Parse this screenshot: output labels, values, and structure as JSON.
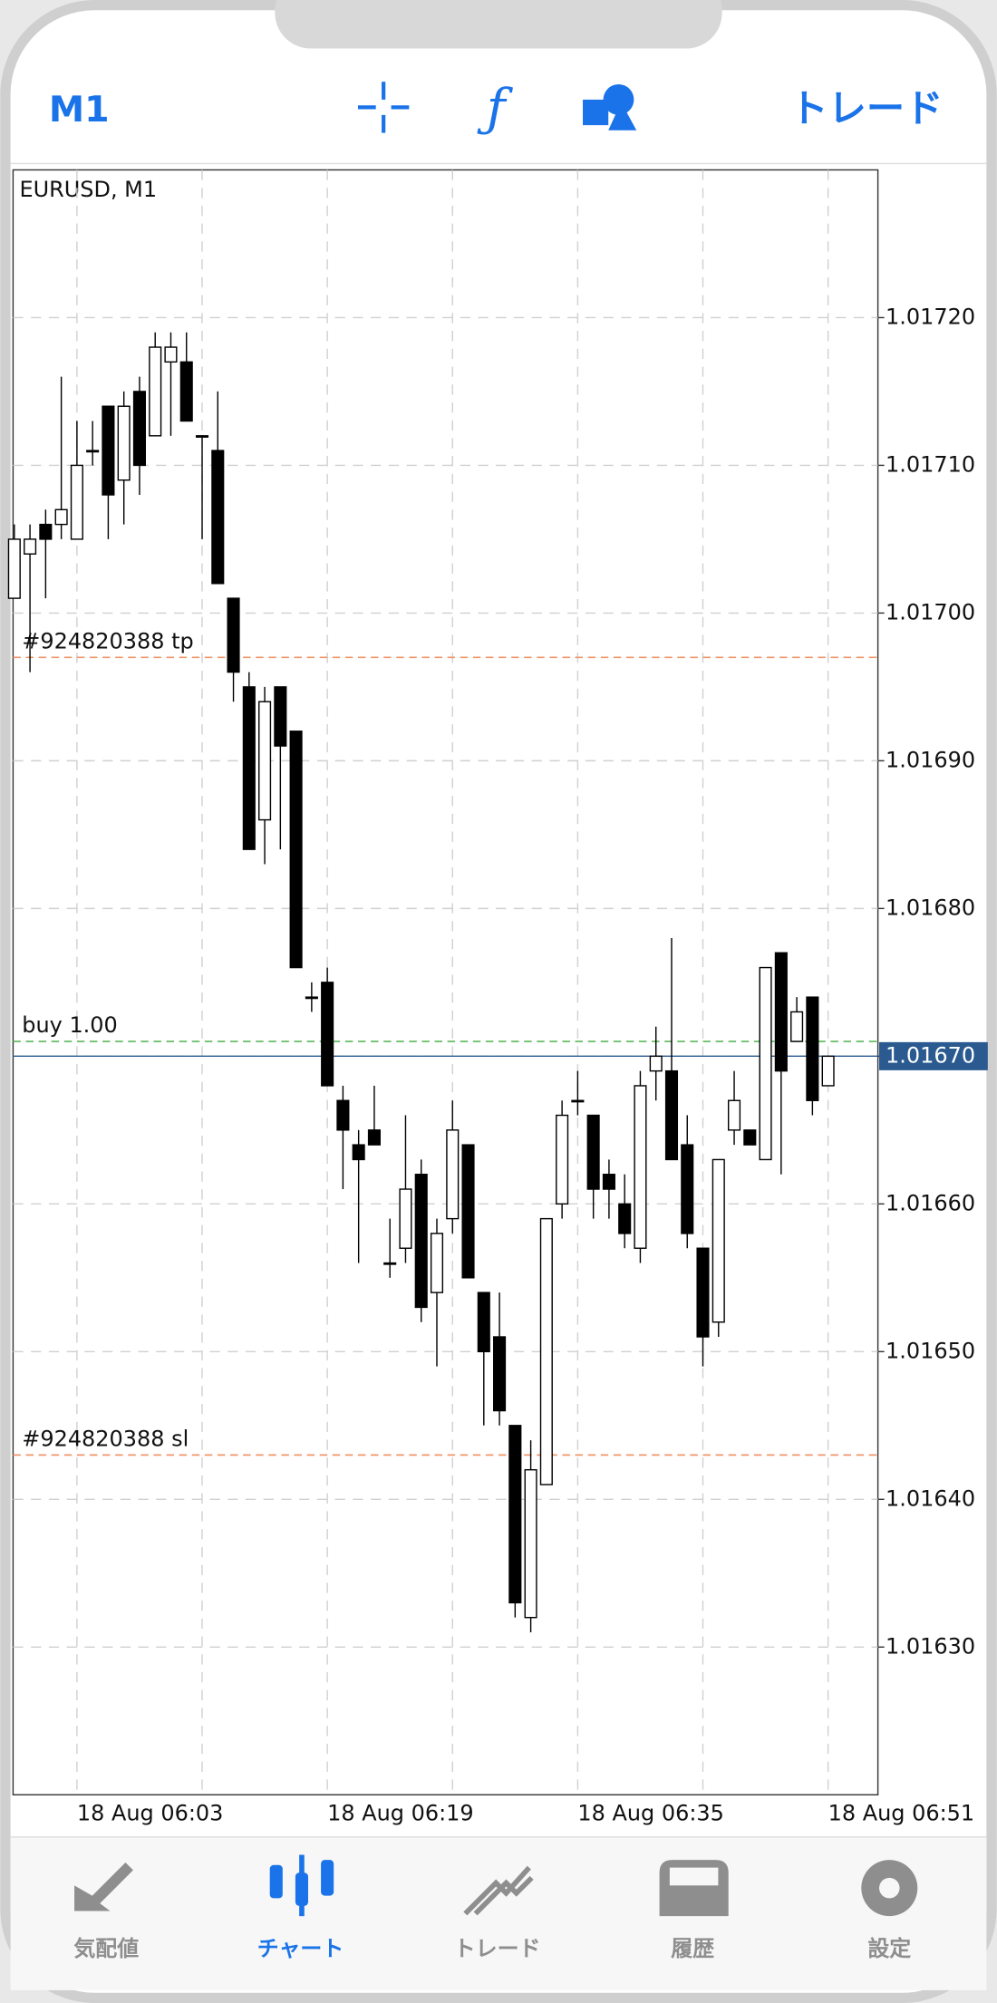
{
  "header": {
    "timeframe": "M1",
    "trade": "トレード"
  },
  "chart_data": {
    "type": "candlestick",
    "title": "EURUSD, M1",
    "categories": [
      null,
      null,
      null,
      null,
      "18 Aug 06:03",
      null,
      null,
      null,
      null,
      null,
      null,
      null,
      null,
      null,
      null,
      null,
      null,
      null,
      null,
      null,
      "18 Aug 06:19",
      null,
      null,
      null,
      null,
      null,
      null,
      null,
      null,
      null,
      null,
      null,
      null,
      null,
      null,
      null,
      "18 Aug 06:35",
      null,
      null,
      null,
      null,
      null,
      null,
      null,
      null,
      null,
      null,
      null,
      null,
      null,
      null,
      null,
      "18 Aug 06:51"
    ],
    "open": [
      1.01701,
      1.01704,
      1.01706,
      1.01706,
      1.01705,
      1.01711,
      1.01714,
      1.01709,
      1.01715,
      1.01712,
      1.01717,
      1.01717,
      1.01712,
      1.01711,
      1.01701,
      1.01695,
      1.01686,
      1.01695,
      1.01692,
      1.01674,
      1.01675,
      1.01667,
      1.01664,
      1.01665,
      1.01656,
      1.01657,
      1.01662,
      1.01654,
      1.01659,
      1.01664,
      1.01654,
      1.01651,
      1.01645,
      1.01632,
      1.01641,
      1.0166,
      1.01667,
      1.01666,
      1.01662,
      1.0166,
      1.01657,
      1.01669,
      1.01669,
      1.01664,
      1.01657,
      1.01652,
      1.01665,
      1.01665,
      1.01663,
      1.01677,
      1.01671,
      1.01674,
      1.01668
    ],
    "high": [
      1.01706,
      1.01706,
      1.01707,
      1.01716,
      1.01713,
      1.01713,
      1.01714,
      1.01715,
      1.01716,
      1.01719,
      1.01719,
      1.01719,
      1.01712,
      1.01715,
      1.01701,
      1.01696,
      1.01695,
      1.01695,
      1.01692,
      1.01675,
      1.01676,
      1.01668,
      1.01665,
      1.01668,
      1.01659,
      1.01666,
      1.01663,
      1.01659,
      1.01667,
      1.01664,
      1.01654,
      1.01654,
      1.01645,
      1.01644,
      1.01659,
      1.01667,
      1.01669,
      1.01666,
      1.01663,
      1.01662,
      1.01669,
      1.01672,
      1.01678,
      1.01666,
      1.01657,
      1.01663,
      1.01669,
      1.01665,
      1.01676,
      1.01677,
      1.01674,
      1.01674,
      1.0167
    ],
    "low": [
      1.01701,
      1.01696,
      1.01701,
      1.01705,
      1.01705,
      1.0171,
      1.01705,
      1.01706,
      1.01708,
      1.01712,
      1.01712,
      1.01713,
      1.01705,
      1.01702,
      1.01694,
      1.01684,
      1.01683,
      1.01684,
      1.01676,
      1.01673,
      1.01668,
      1.01661,
      1.01656,
      1.01664,
      1.01655,
      1.01656,
      1.01652,
      1.01649,
      1.01658,
      1.01655,
      1.01645,
      1.01645,
      1.01632,
      1.01631,
      1.01641,
      1.01659,
      1.01666,
      1.01659,
      1.01659,
      1.01657,
      1.01656,
      1.01667,
      1.01663,
      1.01657,
      1.01649,
      1.01651,
      1.01664,
      1.01664,
      1.01663,
      1.01662,
      1.01671,
      1.01666,
      1.01668
    ],
    "close": [
      1.01705,
      1.01705,
      1.01705,
      1.01707,
      1.0171,
      1.01711,
      1.01708,
      1.01714,
      1.0171,
      1.01718,
      1.01718,
      1.01713,
      1.01712,
      1.01702,
      1.01696,
      1.01684,
      1.01694,
      1.01691,
      1.01676,
      1.01674,
      1.01668,
      1.01665,
      1.01663,
      1.01664,
      1.01656,
      1.01661,
      1.01653,
      1.01658,
      1.01665,
      1.01655,
      1.0165,
      1.01646,
      1.01633,
      1.01642,
      1.01659,
      1.01666,
      1.01667,
      1.01661,
      1.01661,
      1.01658,
      1.01668,
      1.0167,
      1.01663,
      1.01658,
      1.01651,
      1.01663,
      1.01667,
      1.01664,
      1.01676,
      1.01669,
      1.01673,
      1.01667,
      1.0167
    ],
    "up_color": "#ffffff",
    "down_color": "#000000",
    "ylim": [
      1.0162,
      1.0173
    ],
    "yticks": [
      {
        "value": 1.0163,
        "label": "1.01630"
      },
      {
        "value": 1.0164,
        "label": "1.01640"
      },
      {
        "value": 1.0165,
        "label": "1.01650"
      },
      {
        "value": 1.0166,
        "label": "1.01660"
      },
      {
        "value": 1.0167,
        "label": "1.01670"
      },
      {
        "value": 1.0168,
        "label": "1.01680"
      },
      {
        "value": 1.0169,
        "label": "1.01690"
      },
      {
        "value": 1.017,
        "label": "1.01700"
      },
      {
        "value": 1.0171,
        "label": "1.01710"
      },
      {
        "value": 1.0172,
        "label": "1.01720"
      }
    ],
    "grid": true,
    "levels": [
      {
        "label": "#924820388 tp",
        "value": 1.01697,
        "color": "#f0956a"
      },
      {
        "label": "buy 1.00",
        "value": 1.01671,
        "color": "#5cb85c"
      },
      {
        "label": "#924820388 sl",
        "value": 1.01643,
        "color": "#f0956a"
      }
    ],
    "current_price": {
      "value": 1.0167,
      "label": "1.01670",
      "color": "#2a5a8f"
    }
  },
  "tabbar": {
    "items": [
      "気配値",
      "チャート",
      "トレード",
      "履歴",
      "設定"
    ]
  }
}
